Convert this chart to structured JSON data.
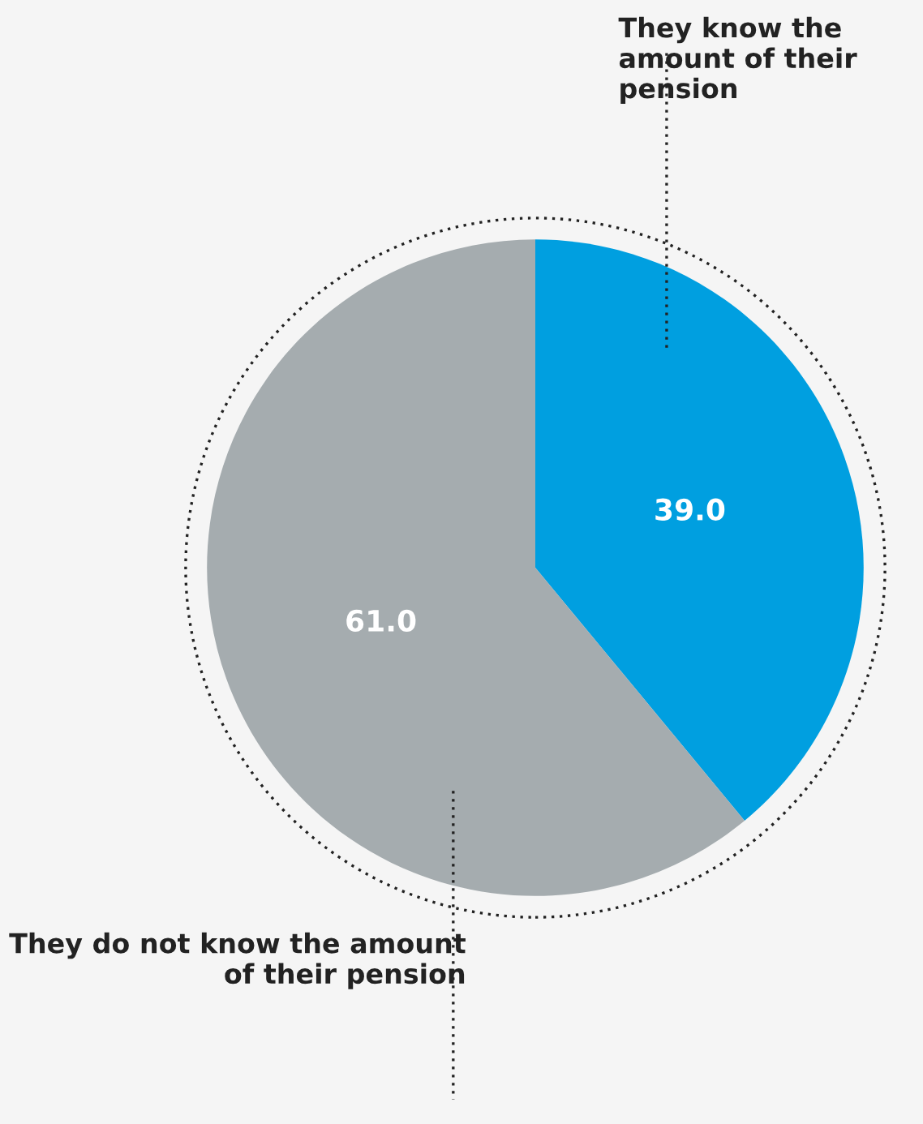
{
  "chart_data": {
    "type": "pie",
    "categories": [
      "They know the amount of their pension",
      "They do not know the amount of their pension"
    ],
    "values": [
      39.0,
      61.0
    ],
    "colors": [
      "#009fe0",
      "#a5acaf"
    ],
    "value_labels": [
      "39.0",
      "61.0"
    ],
    "legend": false
  }
}
